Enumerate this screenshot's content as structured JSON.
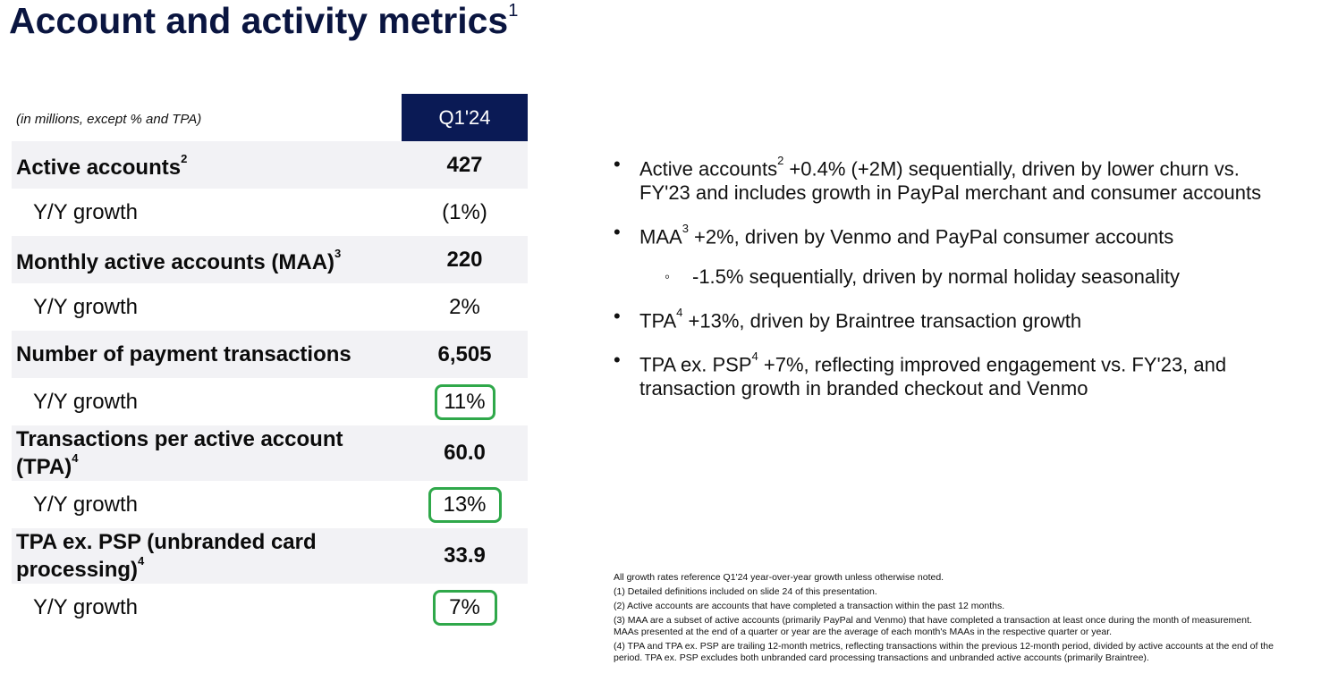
{
  "title": {
    "text": "Account and activity metrics",
    "footnote": "1"
  },
  "table": {
    "units_note": "(in millions, except % and TPA)",
    "column_header": "Q1'24",
    "rows": [
      {
        "label": "Active accounts",
        "sup": "2",
        "value": "427"
      },
      {
        "label": "Y/Y growth",
        "value": "(1%)"
      },
      {
        "label": "Monthly active accounts (MAA)",
        "sup": "3",
        "value": "220"
      },
      {
        "label": "Y/Y growth",
        "value": "2%"
      },
      {
        "label": "Number of payment transactions",
        "value": "6,505"
      },
      {
        "label": "Y/Y growth",
        "value": "11%"
      },
      {
        "label": "Transactions per active account (TPA)",
        "sup": "4",
        "value": "60.0"
      },
      {
        "label": "Y/Y growth",
        "value": "13%"
      },
      {
        "label": "TPA ex. PSP (unbranded card processing)",
        "sup": "4",
        "value": "33.9"
      },
      {
        "label": "Y/Y growth",
        "value": "7%"
      }
    ]
  },
  "bullets": [
    {
      "pre": "Active accounts",
      "sup": "2",
      "post": " +0.4% (+2M) sequentially, driven by lower churn vs. FY'23 and includes growth in PayPal merchant and consumer accounts"
    },
    {
      "pre": "MAA",
      "sup": "3",
      "post": " +2%, driven by Venmo and PayPal consumer accounts"
    },
    {
      "text": "-1.5% sequentially, driven by normal holiday seasonality"
    },
    {
      "pre": "TPA",
      "sup": "4",
      "post": " +13%, driven by Braintree transaction growth"
    },
    {
      "pre": "TPA ex. PSP",
      "sup": "4",
      "post": " +7%, reflecting improved engagement vs. FY'23, and transaction growth in branded checkout and Venmo"
    }
  ],
  "footnotes": [
    "All growth rates reference Q1'24 year-over-year growth unless otherwise noted.",
    "(1) Detailed definitions included on slide 24 of this presentation.",
    "(2) Active accounts are accounts that have completed a transaction within the past 12 months.",
    "(3) MAA are a subset of active accounts (primarily PayPal and Venmo) that have completed a transaction at least once during the month of measurement. MAAs presented at the end of a quarter or year are the average of each month's MAAs in the respective quarter or year.",
    "(4) TPA and TPA ex. PSP are trailing 12-month metrics, reflecting transactions within the previous 12-month period, divided by active accounts at the end of the period. TPA ex. PSP excludes both unbranded card processing transactions and unbranded active accounts (primarily Braintree)."
  ],
  "colors": {
    "header_bg": "#0a1a55",
    "highlight_border": "#2fa84a",
    "title": "#0a1540"
  }
}
